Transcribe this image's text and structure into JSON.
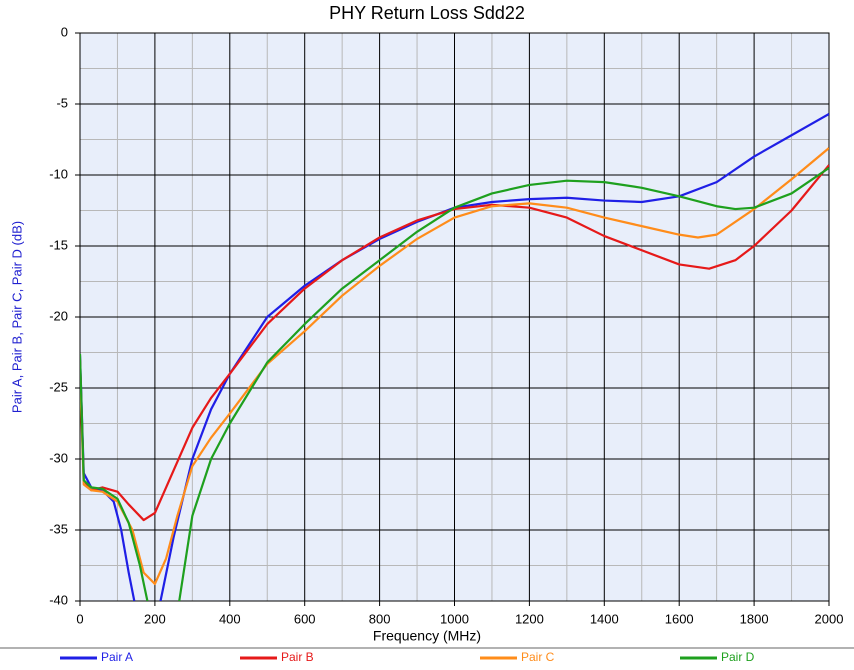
{
  "chart_data": {
    "type": "line",
    "title": "PHY Return Loss Sdd22",
    "x_label": "Frequency (MHz)",
    "y_label": "Pair A, Pair B, Pair C, Pair D (dB)",
    "xlim": [
      0,
      2000
    ],
    "xticks": [
      0,
      200,
      400,
      600,
      800,
      1000,
      1200,
      1400,
      1600,
      1800,
      2000
    ],
    "ylim": [
      -40,
      0
    ],
    "yticks": [
      0,
      -5,
      -10,
      -15,
      -20,
      -25,
      -30,
      -35,
      -40
    ],
    "grid": true,
    "legend": "bottom",
    "series": [
      {
        "name": "Pair A",
        "color": "#1f1fe6",
        "x": [
          0,
          10,
          30,
          60,
          90,
          110,
          130,
          145,
          null,
          215,
          250,
          300,
          350,
          400,
          500,
          600,
          700,
          800,
          900,
          1000,
          1100,
          1200,
          1300,
          1400,
          1500,
          1600,
          1700,
          1800,
          1900,
          2000
        ],
        "values": [
          -22.7,
          -31,
          -32,
          -32.2,
          -33,
          -35,
          -38,
          -40,
          null,
          -40,
          -35.5,
          -30,
          -26.5,
          -24,
          -20,
          -17.8,
          -16,
          -14.5,
          -13.3,
          -12.3,
          -11.9,
          -11.7,
          -11.6,
          -11.8,
          -11.9,
          -11.5,
          -10.5,
          -8.7,
          -7.2,
          -5.7
        ]
      },
      {
        "name": "Pair B",
        "color": "#e61919",
        "x": [
          0,
          10,
          30,
          60,
          100,
          130,
          170,
          200,
          250,
          300,
          350,
          400,
          500,
          600,
          700,
          800,
          900,
          1000,
          1100,
          1200,
          1300,
          1400,
          1500,
          1600,
          1680,
          1750,
          1800,
          1900,
          2000
        ],
        "values": [
          -23,
          -31.5,
          -32.2,
          -32,
          -32.3,
          -33.2,
          -34.3,
          -33.8,
          -30.8,
          -27.8,
          -25.7,
          -24,
          -20.5,
          -18,
          -16,
          -14.4,
          -13.2,
          -12.4,
          -12.1,
          -12.3,
          -13,
          -14.3,
          -15.3,
          -16.3,
          -16.6,
          -16,
          -15,
          -12.5,
          -9.3
        ]
      },
      {
        "name": "Pair C",
        "color": "#ff8c1a",
        "x": [
          0,
          10,
          30,
          60,
          100,
          140,
          170,
          200,
          230,
          260,
          300,
          350,
          400,
          500,
          600,
          700,
          800,
          900,
          1000,
          1100,
          1200,
          1300,
          1400,
          1500,
          1600,
          1650,
          1700,
          1800,
          1900,
          2000
        ],
        "values": [
          -24,
          -31.8,
          -32.2,
          -32.3,
          -33,
          -35,
          -38,
          -38.8,
          -37,
          -34,
          -30.5,
          -28.5,
          -26.8,
          -23.3,
          -21,
          -18.5,
          -16.4,
          -14.5,
          -13,
          -12.2,
          -12,
          -12.3,
          -13,
          -13.6,
          -14.2,
          -14.4,
          -14.2,
          -12.4,
          -10.3,
          -8.1
        ]
      },
      {
        "name": "Pair D",
        "color": "#1ea01e",
        "x": [
          0,
          10,
          30,
          60,
          100,
          130,
          160,
          180,
          null,
          265,
          300,
          350,
          400,
          500,
          600,
          700,
          800,
          900,
          1000,
          1100,
          1200,
          1300,
          1400,
          1500,
          1600,
          1700,
          1750,
          1800,
          1900,
          2000
        ],
        "values": [
          -22.6,
          -31.5,
          -32,
          -32.1,
          -32.8,
          -34.5,
          -37.5,
          -40,
          null,
          -40,
          -34,
          -30,
          -27.5,
          -23.2,
          -20.5,
          -18,
          -16,
          -14,
          -12.3,
          -11.3,
          -10.7,
          -10.4,
          -10.5,
          -10.9,
          -11.5,
          -12.2,
          -12.4,
          -12.3,
          -11.3,
          -9.5
        ]
      }
    ]
  }
}
